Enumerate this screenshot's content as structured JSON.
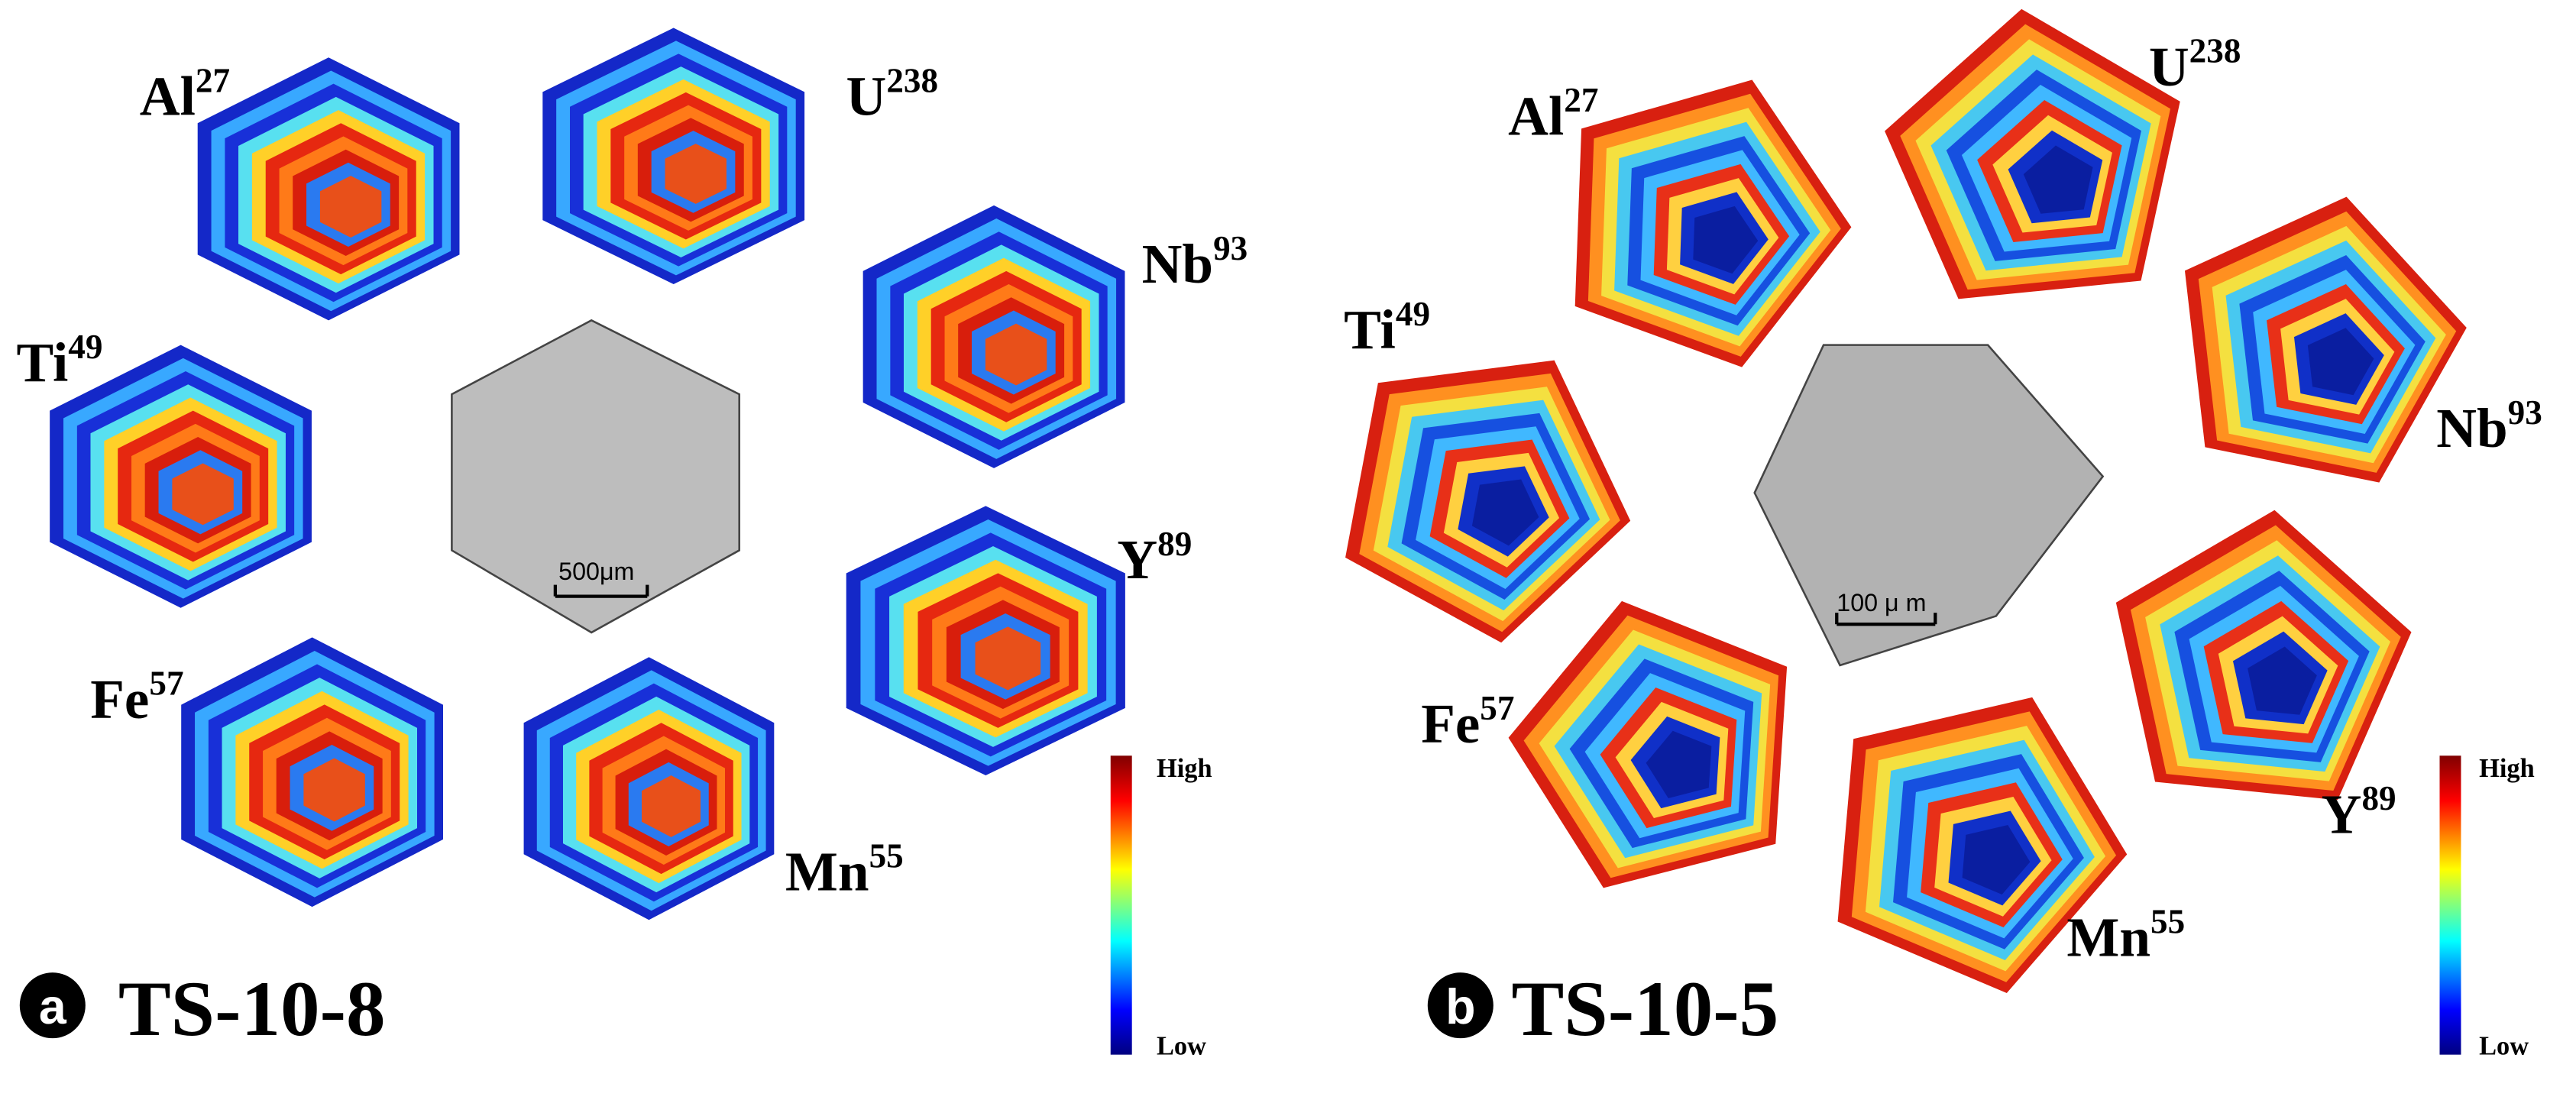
{
  "panels": [
    {
      "letter": "a",
      "sample": "TS-10-8",
      "scale_bar": "500μm",
      "colorbar": {
        "high": "High",
        "low": "Low"
      },
      "elements": [
        {
          "symbol": "Al",
          "mass": "27"
        },
        {
          "symbol": "U",
          "mass": "238"
        },
        {
          "symbol": "Nb",
          "mass": "93"
        },
        {
          "symbol": "Ti",
          "mass": "49"
        },
        {
          "symbol": "Y",
          "mass": "89"
        },
        {
          "symbol": "Fe",
          "mass": "57"
        },
        {
          "symbol": "Mn",
          "mass": "55"
        }
      ]
    },
    {
      "letter": "b",
      "sample": "TS-10-5",
      "scale_bar": "100 μ m",
      "colorbar": {
        "high": "High",
        "low": "Low"
      },
      "elements": [
        {
          "symbol": "Al",
          "mass": "27"
        },
        {
          "symbol": "U",
          "mass": "238"
        },
        {
          "symbol": "Nb",
          "mass": "93"
        },
        {
          "symbol": "Ti",
          "mass": "49"
        },
        {
          "symbol": "Y",
          "mass": "89"
        },
        {
          "symbol": "Fe",
          "mass": "57"
        },
        {
          "symbol": "Mn",
          "mass": "55"
        }
      ]
    }
  ]
}
